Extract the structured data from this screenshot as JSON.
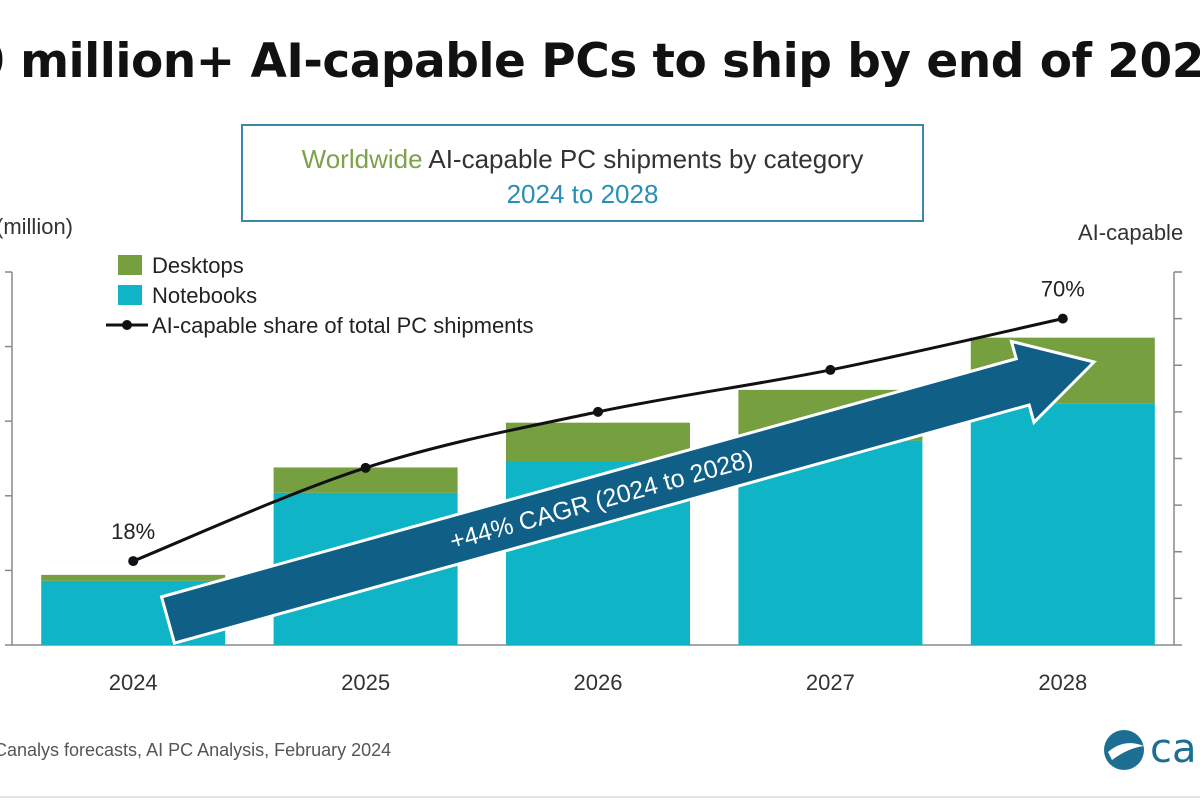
{
  "headline": "0 million+ AI-capable PCs to ship by end of 202",
  "title": {
    "geo": "Worldwide",
    "rest": " AI-capable  PC shipments by category",
    "period": "2024 to 2028"
  },
  "left_axis_label": "(million)",
  "right_axis_label": "AI-capable",
  "source": "Canalys forecasts, AI PC Analysis, February 2024",
  "logo_text": "car",
  "colors": {
    "desktops": "#76a040",
    "notebooks": "#0fb5c6",
    "arrow": "#0f5f86",
    "line": "#111111"
  },
  "chart_data": {
    "type": "bar",
    "stacked": true,
    "categories": [
      "2024",
      "2025",
      "2026",
      "2027",
      "2028"
    ],
    "ylim": [
      0,
      250
    ],
    "y2lim": [
      0,
      80
    ],
    "series": [
      {
        "name": "Notebooks",
        "values": [
          43,
          102,
          123,
          137,
          162
        ]
      },
      {
        "name": "Desktops",
        "values": [
          4,
          17,
          26,
          34,
          44
        ]
      }
    ],
    "line": {
      "name": "AI-capable share of total PC shipments",
      "values": [
        18,
        38,
        50,
        59,
        70
      ]
    },
    "data_labels": {
      "first": "18%",
      "last": "70%"
    },
    "annotation": "+44% CAGR (2024 to 2028)",
    "legend_position": "top-left",
    "grid": false
  }
}
